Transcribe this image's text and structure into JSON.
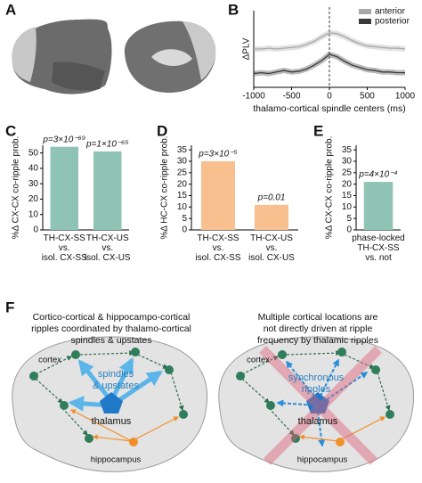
{
  "panel_labels": [
    "A",
    "B",
    "C",
    "D",
    "E",
    "F"
  ],
  "chart_data": [
    {
      "type": "line",
      "xlabel": "thalamo-cortical spindle centers (ms)",
      "ylabel": "ΔPLV",
      "x": [
        -1000,
        -900,
        -800,
        -700,
        -600,
        -500,
        -400,
        -300,
        -200,
        -100,
        0,
        100,
        200,
        300,
        400,
        500,
        600,
        700,
        800,
        900,
        1000
      ],
      "series": [
        {
          "name": "anterior",
          "color": "#a8a8a8",
          "values": [
            0.5,
            0.5,
            0.51,
            0.5,
            0.51,
            0.52,
            0.53,
            0.56,
            0.6,
            0.66,
            0.71,
            0.7,
            0.66,
            0.61,
            0.57,
            0.54,
            0.53,
            0.52,
            0.51,
            0.51,
            0.5
          ]
        },
        {
          "name": "posterior",
          "color": "#3a3a3a",
          "values": [
            0.18,
            0.19,
            0.18,
            0.2,
            0.22,
            0.2,
            0.21,
            0.24,
            0.29,
            0.35,
            0.43,
            0.4,
            0.34,
            0.29,
            0.26,
            0.23,
            0.22,
            0.2,
            0.2,
            0.19,
            0.19
          ]
        }
      ],
      "xlim": [
        -1000,
        1000
      ],
      "xticks": [
        -1000,
        -500,
        0,
        500,
        1000
      ],
      "ylim": [
        0,
        1
      ],
      "legend": "upper right"
    },
    {
      "type": "bar",
      "ylabel": "%Δ CX-CX co-ripple prob.",
      "categories": [
        "TH-CX-SS\nvs.\nisol. CX-SS",
        "TH-CX-US\nvs.\nisol. CX-US"
      ],
      "values": [
        54,
        51
      ],
      "annotations": [
        "p=3×10⁻⁶⁹",
        "p=1×10⁻⁶⁵"
      ],
      "color": "#8fc4b4",
      "ylim": [
        0,
        55
      ],
      "yticks": [
        0,
        10,
        20,
        30,
        40,
        50
      ]
    },
    {
      "type": "bar",
      "ylabel": "%Δ HC-CX co-ripple prob.",
      "categories": [
        "TH-CX-SS\nvs.\nisol. CX-SS",
        "TH-CX-US\nvs.\nisol. CX-US"
      ],
      "values": [
        30,
        11
      ],
      "annotations": [
        "p=3×10⁻⁵",
        "p=0.01"
      ],
      "color": "#f9c08f",
      "ylim": [
        0,
        37
      ],
      "yticks": [
        0,
        5,
        10,
        15,
        20,
        25,
        30,
        35
      ]
    },
    {
      "type": "bar",
      "ylabel": "%Δ CX-CX co-ripple prob.",
      "categories": [
        "phase-locked\nTH-CX-SS\nvs. not"
      ],
      "values": [
        21
      ],
      "annotations": [
        "p=4×10⁻⁴"
      ],
      "color": "#8fc4b4",
      "ylim": [
        0,
        37
      ],
      "yticks": [
        0,
        5,
        10,
        15,
        20,
        25,
        30,
        35
      ]
    }
  ],
  "diagram": {
    "left": {
      "title": [
        "Cortico-cortical & hippocampo-cortical",
        "ripples coordinated by thalamo-cortical",
        "spindles & upstates"
      ],
      "cortex": "cortex",
      "driver": [
        "spindles",
        "& upstates"
      ],
      "thalamus": "thalamus",
      "hippocampus": "hippocampus"
    },
    "right": {
      "title": [
        "Multiple cortical locations are",
        "not directly driven at ripple",
        "frequency by thalamic ripples"
      ],
      "cortex": "cortex",
      "driver": [
        "synchronous",
        "ripples"
      ],
      "thalamus": "thalamus",
      "hippocampus": "hippocampus"
    }
  }
}
